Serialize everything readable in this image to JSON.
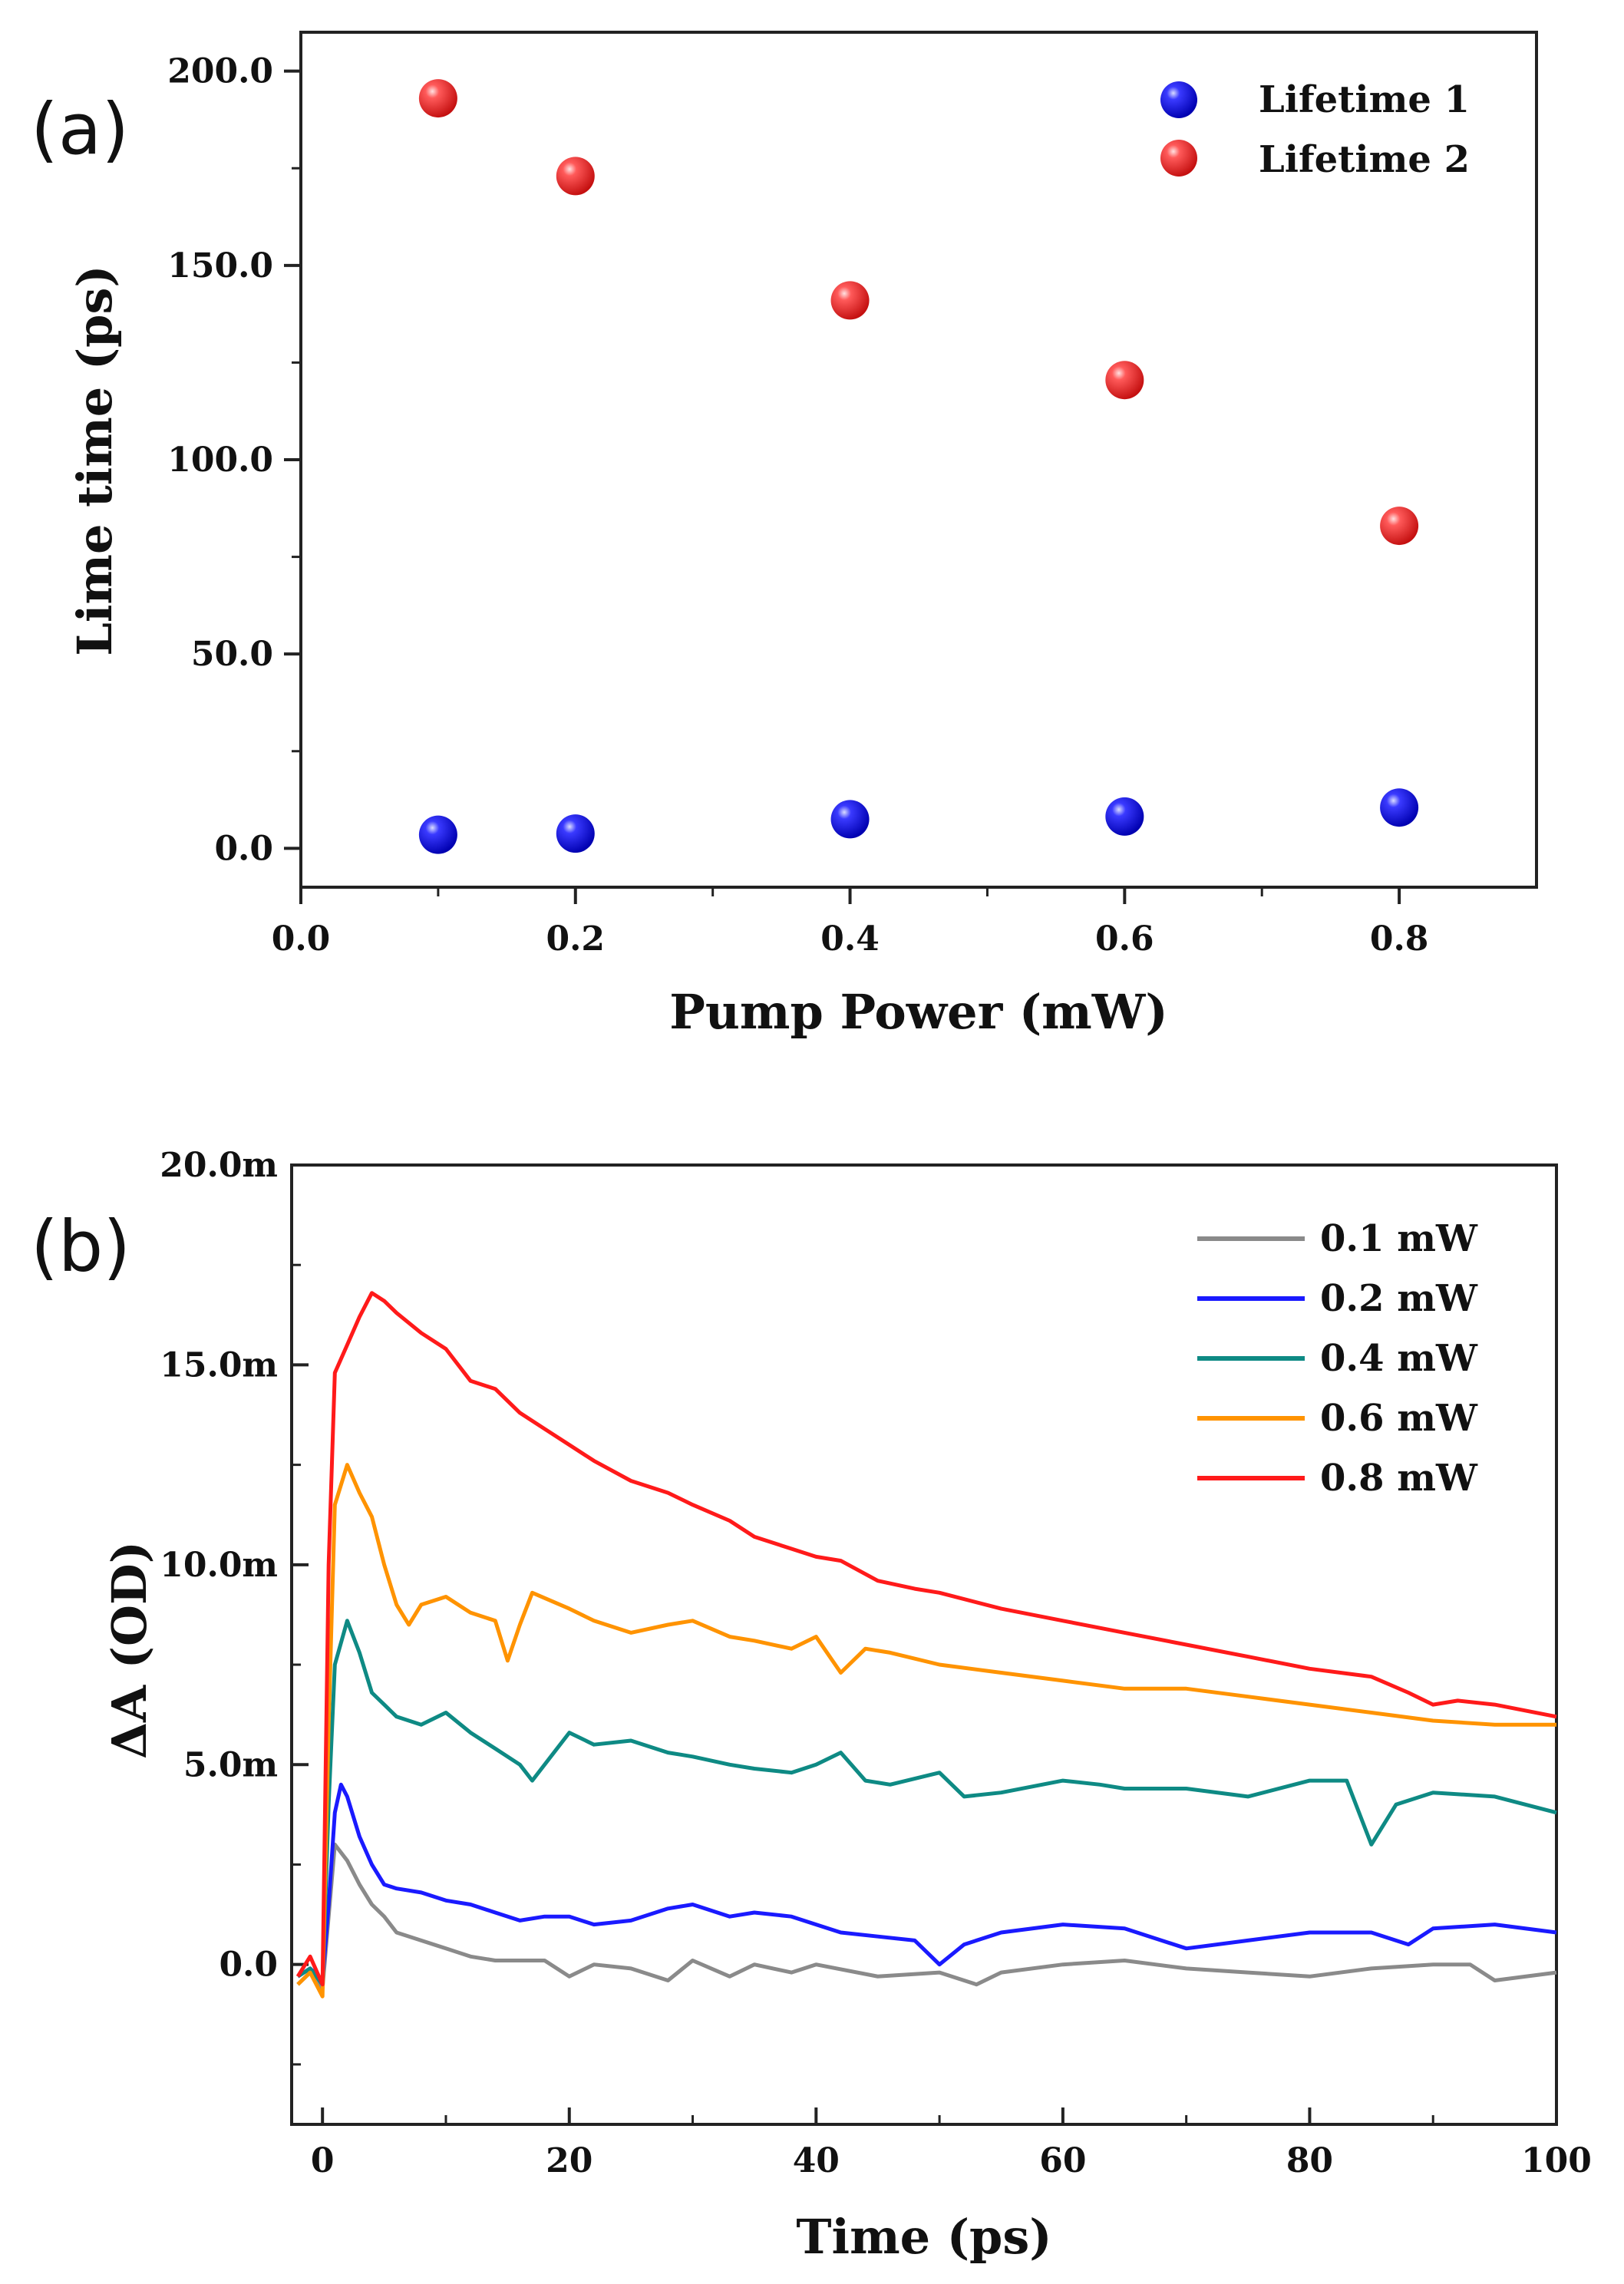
{
  "chart_data": [
    {
      "type": "scatter",
      "panel_label": "(a)",
      "xlabel": "Pump Power (mW)",
      "ylabel": "Lime time (ps)",
      "xlim": [
        0.0,
        0.9
      ],
      "ylim": [
        -10,
        210
      ],
      "xticks": [
        0.0,
        0.2,
        0.4,
        0.6,
        0.8
      ],
      "xtick_labels": [
        "0.0",
        "0.2",
        "0.4",
        "0.6",
        "0.8"
      ],
      "yticks": [
        0,
        50,
        100,
        150,
        200
      ],
      "ytick_labels": [
        "0.0",
        "50.0",
        "100.0",
        "150.0",
        "200.0"
      ],
      "legend_position": "top-right",
      "series": [
        {
          "name": "Lifetime 1",
          "color": "#1a1aff",
          "x": [
            0.1,
            0.2,
            0.4,
            0.6,
            0.8
          ],
          "y": [
            3.5,
            3.8,
            7.5,
            8.2,
            10.5
          ]
        },
        {
          "name": "Lifetime 2",
          "color": "#ff3b3b",
          "x": [
            0.1,
            0.2,
            0.4,
            0.6,
            0.8
          ],
          "y": [
            193,
            173,
            141,
            120.5,
            83
          ]
        }
      ]
    },
    {
      "type": "line",
      "panel_label": "(b)",
      "xlabel": "Time (ps)",
      "ylabel": "ΔA (OD)",
      "xlim": [
        -2.5,
        100
      ],
      "ylim": [
        -4,
        20
      ],
      "xticks": [
        0,
        20,
        40,
        60,
        80,
        100
      ],
      "xtick_labels": [
        "0",
        "20",
        "40",
        "60",
        "80",
        "100"
      ],
      "yticks": [
        0,
        5,
        10,
        15,
        20
      ],
      "ytick_labels": [
        "0.0",
        "5.0m",
        "10.0m",
        "15.0m",
        "20.0m"
      ],
      "y_unit": "mOD",
      "legend_position": "top-right",
      "series": [
        {
          "name": "0.1 mW",
          "color": "#8a8a8a",
          "x": [
            -2,
            -1,
            0,
            0.5,
            1,
            2,
            3,
            4,
            5,
            6,
            8,
            10,
            12,
            14,
            18,
            20,
            22,
            25,
            28,
            30,
            33,
            35,
            38,
            40,
            45,
            50,
            53,
            55,
            60,
            65,
            70,
            75,
            80,
            85,
            90,
            93,
            95,
            100
          ],
          "y": [
            -0.5,
            -0.2,
            -0.6,
            1.2,
            3.0,
            2.6,
            2.0,
            1.5,
            1.2,
            0.8,
            0.6,
            0.4,
            0.2,
            0.1,
            0.1,
            -0.3,
            0.0,
            -0.1,
            -0.4,
            0.1,
            -0.3,
            0.0,
            -0.2,
            0.0,
            -0.3,
            -0.2,
            -0.5,
            -0.2,
            0.0,
            0.1,
            -0.1,
            -0.2,
            -0.3,
            -0.1,
            0.0,
            0.0,
            -0.4,
            -0.2
          ]
        },
        {
          "name": "0.2 mW",
          "color": "#1a1aff",
          "x": [
            -2,
            -1,
            0,
            0.5,
            1,
            1.5,
            2,
            3,
            4,
            5,
            6,
            8,
            10,
            12,
            14,
            16,
            18,
            20,
            22,
            25,
            28,
            30,
            33,
            35,
            38,
            40,
            42,
            45,
            48,
            50,
            52,
            55,
            60,
            65,
            70,
            75,
            80,
            85,
            88,
            90,
            95,
            100
          ],
          "y": [
            -0.3,
            -0.1,
            -0.4,
            1.5,
            3.8,
            4.5,
            4.2,
            3.2,
            2.5,
            2.0,
            1.9,
            1.8,
            1.6,
            1.5,
            1.3,
            1.1,
            1.2,
            1.2,
            1.0,
            1.1,
            1.4,
            1.5,
            1.2,
            1.3,
            1.2,
            1.0,
            0.8,
            0.7,
            0.6,
            0.0,
            0.5,
            0.8,
            1.0,
            0.9,
            0.4,
            0.6,
            0.8,
            0.8,
            0.5,
            0.9,
            1.0,
            0.8
          ]
        },
        {
          "name": "0.4 mW",
          "color": "#0e8a84",
          "x": [
            -2,
            -1,
            0,
            0.5,
            1,
            2,
            3,
            4,
            5,
            6,
            8,
            10,
            12,
            14,
            16,
            17,
            20,
            22,
            25,
            28,
            30,
            33,
            35,
            38,
            40,
            42,
            44,
            46,
            50,
            52,
            55,
            60,
            63,
            65,
            70,
            75,
            80,
            83,
            85,
            87,
            90,
            95,
            100
          ],
          "y": [
            -0.3,
            -0.1,
            -0.5,
            4.0,
            7.5,
            8.6,
            7.8,
            6.8,
            6.5,
            6.2,
            6.0,
            6.3,
            5.8,
            5.4,
            5.0,
            4.6,
            5.8,
            5.5,
            5.6,
            5.3,
            5.2,
            5.0,
            4.9,
            4.8,
            5.0,
            5.3,
            4.6,
            4.5,
            4.8,
            4.2,
            4.3,
            4.6,
            4.5,
            4.4,
            4.4,
            4.2,
            4.6,
            4.6,
            3.0,
            4.0,
            4.3,
            4.2,
            3.8
          ]
        },
        {
          "name": "0.6 mW",
          "color": "#ff9300",
          "x": [
            -2,
            -1,
            0,
            0.5,
            1,
            2,
            3,
            4,
            5,
            6,
            7,
            8,
            10,
            12,
            14,
            15,
            16,
            17,
            20,
            22,
            25,
            28,
            30,
            33,
            35,
            38,
            40,
            42,
            44,
            46,
            50,
            55,
            60,
            65,
            70,
            75,
            80,
            85,
            90,
            95,
            100
          ],
          "y": [
            -0.5,
            -0.2,
            -0.8,
            6.0,
            11.5,
            12.5,
            11.8,
            11.2,
            10.0,
            9.0,
            8.5,
            9.0,
            9.2,
            8.8,
            8.6,
            7.6,
            8.5,
            9.3,
            8.9,
            8.6,
            8.3,
            8.5,
            8.6,
            8.2,
            8.1,
            7.9,
            8.2,
            7.3,
            7.9,
            7.8,
            7.5,
            7.3,
            7.1,
            6.9,
            6.9,
            6.7,
            6.5,
            6.3,
            6.1,
            6.0,
            6.0
          ]
        },
        {
          "name": "0.8 mW",
          "color": "#ff1a1a",
          "x": [
            -2,
            -1,
            0,
            0.5,
            1,
            2,
            3,
            4,
            5,
            6,
            8,
            10,
            12,
            14,
            16,
            18,
            20,
            22,
            25,
            28,
            30,
            33,
            35,
            38,
            40,
            42,
            45,
            48,
            50,
            55,
            60,
            65,
            70,
            75,
            80,
            85,
            88,
            90,
            92,
            95,
            100
          ],
          "y": [
            -0.3,
            0.2,
            -0.5,
            10.0,
            14.8,
            15.5,
            16.2,
            16.8,
            16.6,
            16.3,
            15.8,
            15.4,
            14.6,
            14.4,
            13.8,
            13.4,
            13.0,
            12.6,
            12.1,
            11.8,
            11.5,
            11.1,
            10.7,
            10.4,
            10.2,
            10.1,
            9.6,
            9.4,
            9.3,
            8.9,
            8.6,
            8.3,
            8.0,
            7.7,
            7.4,
            7.2,
            6.8,
            6.5,
            6.6,
            6.5,
            6.2
          ]
        }
      ]
    }
  ]
}
